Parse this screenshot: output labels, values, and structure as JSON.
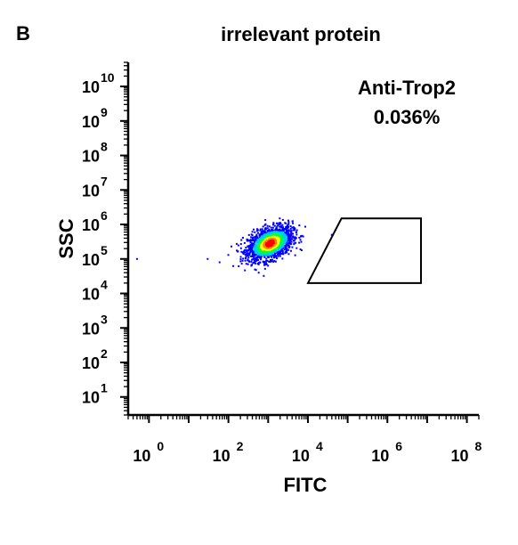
{
  "panel_label": "B",
  "chart_data": {
    "type": "scatter",
    "title": "irrelevant protein",
    "xlabel": "FITC",
    "ylabel": "SSC",
    "x_scale": "log",
    "y_scale": "log",
    "xlim": [
      0.3,
      200000000
    ],
    "ylim": [
      3,
      50000000000
    ],
    "x_ticks": [
      {
        "base": "10",
        "exp": "0"
      },
      {
        "base": "10",
        "exp": "2"
      },
      {
        "base": "10",
        "exp": "4"
      },
      {
        "base": "10",
        "exp": "6"
      },
      {
        "base": "10",
        "exp": "8"
      }
    ],
    "y_ticks": [
      {
        "base": "10",
        "exp": "1"
      },
      {
        "base": "10",
        "exp": "2"
      },
      {
        "base": "10",
        "exp": "3"
      },
      {
        "base": "10",
        "exp": "4"
      },
      {
        "base": "10",
        "exp": "5"
      },
      {
        "base": "10",
        "exp": "6"
      },
      {
        "base": "10",
        "exp": "7"
      },
      {
        "base": "10",
        "exp": "8"
      },
      {
        "base": "10",
        "exp": "9"
      },
      {
        "base": "10",
        "exp": "10"
      }
    ],
    "population": {
      "center_x_log": 3.05,
      "center_y_log": 5.45,
      "spread_x_log": 0.28,
      "spread_y_log": 0.22,
      "color_scale": [
        "#0000ff",
        "#00c8ff",
        "#00ff40",
        "#ffff00",
        "#ff8000",
        "#ff0000"
      ]
    },
    "gate": {
      "name": "Anti-Trop2",
      "percent": "0.036%",
      "polygon": [
        [
          10000,
          20000
        ],
        [
          70000,
          1500000
        ],
        [
          7000000,
          1500000
        ],
        [
          7000000,
          20000
        ]
      ]
    },
    "outliers": [
      {
        "x": 0.5,
        "y": 100000
      },
      {
        "x": 30,
        "y": 100000
      },
      {
        "x": 60,
        "y": 80000
      },
      {
        "x": 40000,
        "y": 500000
      },
      {
        "x": 50000,
        "y": 700000
      }
    ]
  }
}
